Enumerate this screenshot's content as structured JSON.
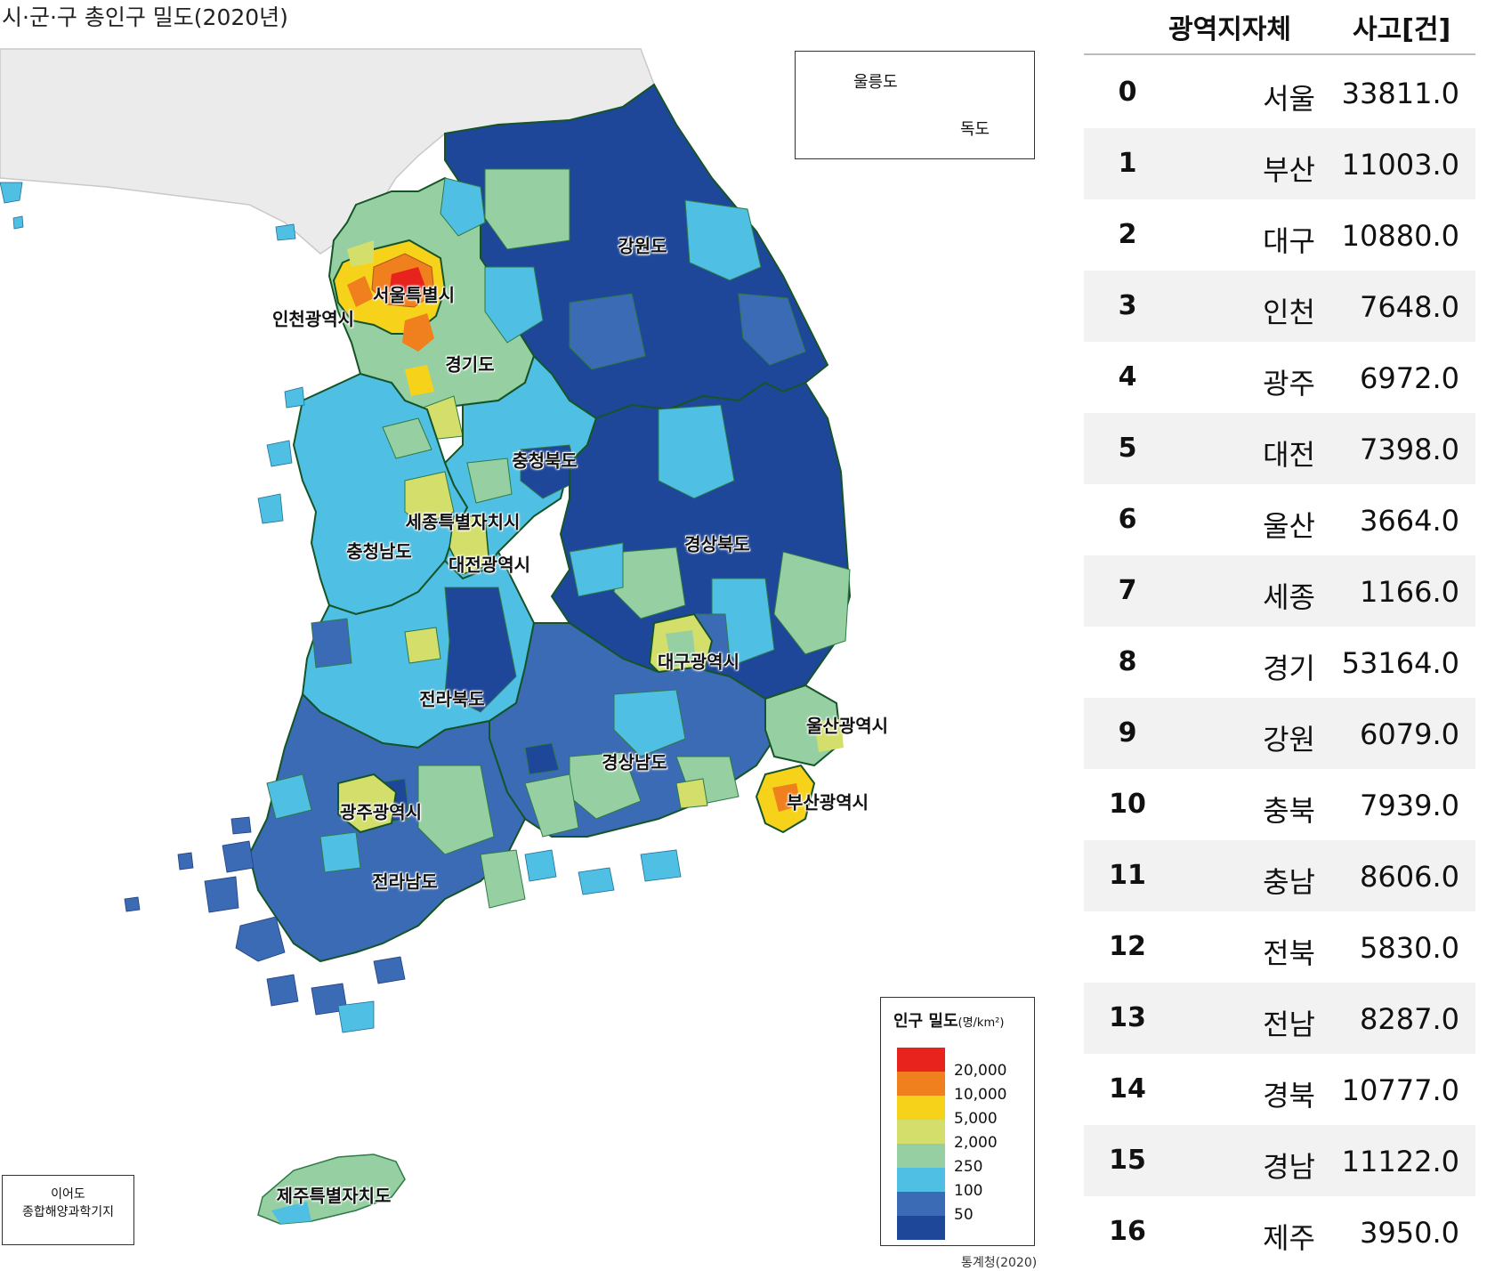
{
  "map": {
    "title": "시·군·구 총인구 밀도(2020년)",
    "inset": {
      "ulleung": "울릉도",
      "dokdo": "독도"
    },
    "ieodo": {
      "line1": "이어도",
      "line2": "종합해양과학기지"
    },
    "source": "통계청(2020)",
    "region_labels": [
      "서울특별시",
      "인천광역시",
      "경기도",
      "강원도",
      "충청북도",
      "세종특별자치시",
      "충청남도",
      "대전광역시",
      "경상북도",
      "대구광역시",
      "울산광역시",
      "전라북도",
      "경상남도",
      "부산광역시",
      "광주광역시",
      "전라남도",
      "제주특별자치도"
    ],
    "legend": {
      "title": "인구 밀도",
      "unit": "(명/km²)",
      "colors": [
        "#e8221d",
        "#f07f1d",
        "#f7d21b",
        "#d4df6b",
        "#96d0a2",
        "#4fbfe3",
        "#3b6bb5",
        "#1f4799"
      ],
      "ticks": [
        "20,000",
        "10,000",
        "5,000",
        "2,000",
        "250",
        "100",
        "50"
      ]
    }
  },
  "table": {
    "columns": [
      "광역지자체",
      "사고[건]"
    ],
    "rows": [
      {
        "index": "0",
        "region": "서울",
        "value": "33811.0"
      },
      {
        "index": "1",
        "region": "부산",
        "value": "11003.0"
      },
      {
        "index": "2",
        "region": "대구",
        "value": "10880.0"
      },
      {
        "index": "3",
        "region": "인천",
        "value": "7648.0"
      },
      {
        "index": "4",
        "region": "광주",
        "value": "6972.0"
      },
      {
        "index": "5",
        "region": "대전",
        "value": "7398.0"
      },
      {
        "index": "6",
        "region": "울산",
        "value": "3664.0"
      },
      {
        "index": "7",
        "region": "세종",
        "value": "1166.0"
      },
      {
        "index": "8",
        "region": "경기",
        "value": "53164.0"
      },
      {
        "index": "9",
        "region": "강원",
        "value": "6079.0"
      },
      {
        "index": "10",
        "region": "충북",
        "value": "7939.0"
      },
      {
        "index": "11",
        "region": "충남",
        "value": "8606.0"
      },
      {
        "index": "12",
        "region": "전북",
        "value": "5830.0"
      },
      {
        "index": "13",
        "region": "전남",
        "value": "8287.0"
      },
      {
        "index": "14",
        "region": "경북",
        "value": "10777.0"
      },
      {
        "index": "15",
        "region": "경남",
        "value": "11122.0"
      },
      {
        "index": "16",
        "region": "제주",
        "value": "3950.0"
      }
    ]
  }
}
